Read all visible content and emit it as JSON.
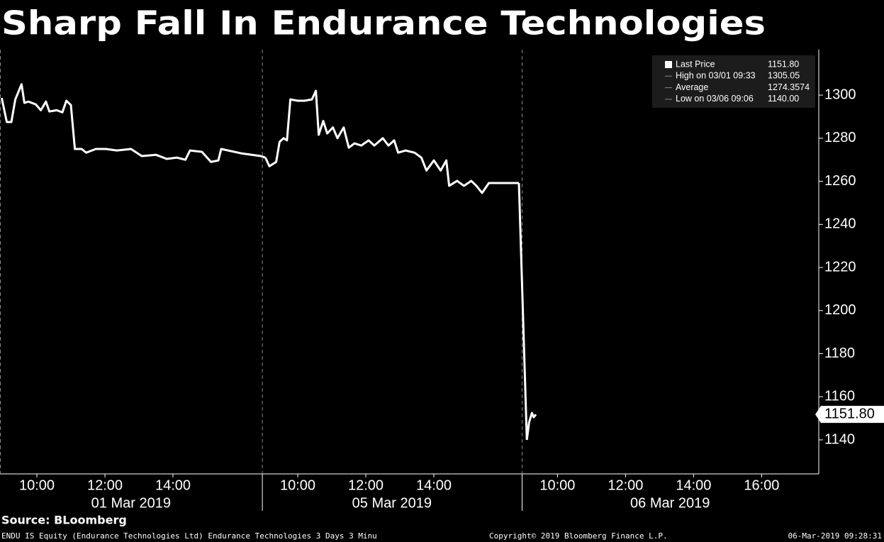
{
  "chart_data": {
    "type": "line",
    "title": "Sharp Fall In Endurance Technologies",
    "color": "#ffffff",
    "ylim": [
      1124.2,
      1321.1
    ],
    "yticks": [
      1140,
      1160,
      1180,
      1200,
      1220,
      1240,
      1260,
      1280,
      1300
    ],
    "panels": [
      {
        "label": "01 Mar 2019",
        "xlim": [
          "08:55",
          "16:37"
        ],
        "xticks": [
          "10:00",
          "12:00",
          "14:00"
        ],
        "x": [
          "08:58",
          "09:07",
          "09:15",
          "09:22",
          "09:33",
          "09:38",
          "09:45",
          "09:58",
          "10:07",
          "10:16",
          "10:22",
          "10:35",
          "10:45",
          "10:52",
          "11:00",
          "11:07",
          "11:19",
          "11:27",
          "11:44",
          "12:02",
          "12:21",
          "12:46",
          "13:05",
          "13:30",
          "13:49",
          "14:07",
          "14:22",
          "14:30",
          "14:51",
          "15:07",
          "15:20",
          "15:25",
          "16:00",
          "16:35"
        ],
        "values": [
          1298.7,
          1287.5,
          1287.5,
          1298.0,
          1305.05,
          1296.4,
          1297.0,
          1295.7,
          1293.0,
          1297.0,
          1292.4,
          1293.0,
          1292.0,
          1297.4,
          1295.4,
          1275.0,
          1275.0,
          1273.3,
          1275.0,
          1275.0,
          1274.3,
          1275.0,
          1271.7,
          1272.3,
          1270.4,
          1271.0,
          1270.0,
          1274.3,
          1273.7,
          1269.0,
          1269.7,
          1275.0,
          1273.0,
          1271.7
        ]
      },
      {
        "label": "05 Mar 2019",
        "xlim": [
          "08:57",
          "16:35"
        ],
        "xticks": [
          "10:00",
          "12:00",
          "14:00"
        ],
        "x": [
          "09:03",
          "09:10",
          "09:22",
          "09:28",
          "09:35",
          "09:41",
          "09:47",
          "10:00",
          "10:12",
          "10:25",
          "10:32",
          "10:37",
          "10:45",
          "10:52",
          "11:02",
          "11:10",
          "11:21",
          "11:30",
          "11:40",
          "11:52",
          "12:05",
          "12:15",
          "12:30",
          "12:40",
          "12:50",
          "12:57",
          "13:10",
          "13:26",
          "13:38",
          "13:47",
          "14:00",
          "14:12",
          "14:22",
          "14:27",
          "14:41",
          "14:53",
          "15:06",
          "15:15",
          "15:25",
          "15:37",
          "16:30"
        ],
        "values": [
          1271.0,
          1267.0,
          1269.0,
          1278.3,
          1280.0,
          1279.0,
          1298.0,
          1297.4,
          1297.4,
          1298.0,
          1302.0,
          1281.6,
          1288.0,
          1282.2,
          1285.0,
          1280.0,
          1285.0,
          1275.6,
          1277.6,
          1276.6,
          1279.0,
          1276.6,
          1280.0,
          1276.6,
          1279.0,
          1273.3,
          1274.3,
          1273.3,
          1271.0,
          1265.0,
          1269.7,
          1265.0,
          1269.7,
          1257.9,
          1260.2,
          1257.9,
          1260.2,
          1257.9,
          1254.6,
          1259.2,
          1259.2
        ]
      },
      {
        "label": "06 Mar 2019",
        "xlim": [
          "08:57",
          "17:40"
        ],
        "xticks": [
          "10:00",
          "12:00",
          "14:00",
          "16:00"
        ],
        "x": [
          "09:06",
          "09:10",
          "09:15",
          "09:18",
          "09:22"
        ],
        "values": [
          1140.0,
          1148.2,
          1152.5,
          1150.5,
          1151.8
        ]
      }
    ],
    "legend_items": [
      {
        "name": "Last Price",
        "value": 1151.8,
        "value_label": "1151.80"
      },
      {
        "name": "High on 03/01 09:33",
        "value": 1305.05
      },
      {
        "name": "Average",
        "value": 1274.3574
      },
      {
        "name": "Low on 03/06 09:06",
        "value": 1140.0,
        "value_label": "1140.00"
      }
    ],
    "source": "Source: BLoomberg",
    "footer_left": "ENDU IS Equity (Endurance Technologies Ltd) Endurance Technologies 3 Days 3 Minu",
    "footer_center": "Copyright© 2019 Bloomberg Finance L.P.",
    "footer_right": "06-Mar-2019 09:28:31"
  }
}
